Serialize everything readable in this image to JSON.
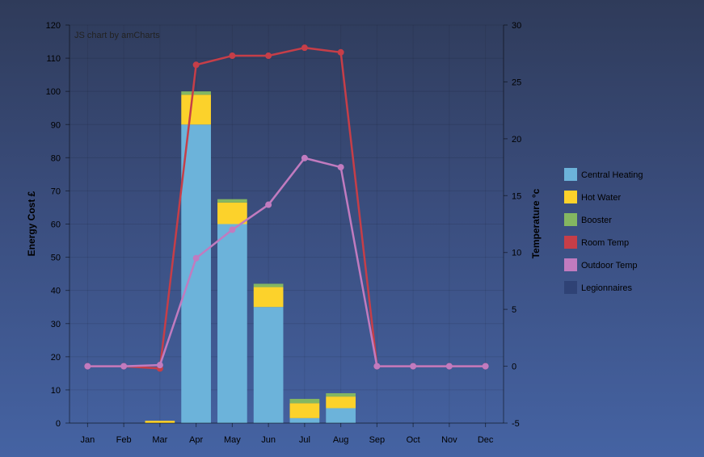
{
  "credit": "JS chart by amCharts",
  "chart_data": {
    "type": "bar",
    "categories": [
      "Jan",
      "Feb",
      "Mar",
      "Apr",
      "May",
      "Jun",
      "Jul",
      "Aug",
      "Sep",
      "Oct",
      "Nov",
      "Dec"
    ],
    "left_axis": {
      "title": "Energy Cost £",
      "min": 0,
      "max": 120,
      "step": 10
    },
    "right_axis": {
      "title": "Temperature °c",
      "min": -5,
      "max": 30,
      "step": 5
    },
    "stacked_series": [
      {
        "name": "Central Heating",
        "color": "#6cb3da",
        "values": [
          0,
          0,
          0,
          90,
          60,
          35,
          1.5,
          4.5,
          0,
          0,
          0,
          0
        ]
      },
      {
        "name": "Hot Water",
        "color": "#fcd22b",
        "values": [
          0,
          0,
          0.7,
          9,
          6.5,
          6,
          4.5,
          3.5,
          0,
          0,
          0,
          0
        ]
      },
      {
        "name": "Booster",
        "color": "#84b761",
        "values": [
          0,
          0,
          0,
          1,
          1,
          1,
          1.3,
          1,
          0,
          0,
          0,
          0
        ]
      }
    ],
    "line_series": [
      {
        "name": "Room Temp",
        "color": "#c63e48",
        "values": [
          0,
          0,
          -0.2,
          26.5,
          27.3,
          27.3,
          28,
          27.6,
          0,
          0,
          0,
          0
        ]
      },
      {
        "name": "Outdoor Temp",
        "color": "#c17bbf",
        "values": [
          0,
          0,
          0.1,
          9.5,
          12,
          14.2,
          18.3,
          17.5,
          0,
          0,
          0,
          0
        ]
      }
    ],
    "legend": {
      "position": "right",
      "items": [
        {
          "label": "Central Heating",
          "color": "#6cb3da"
        },
        {
          "label": "Hot Water",
          "color": "#fcd22b"
        },
        {
          "label": "Booster",
          "color": "#84b761"
        },
        {
          "label": "Room Temp",
          "color": "#c63e48"
        },
        {
          "label": "Outdoor Temp",
          "color": "#c17bbf"
        },
        {
          "label": "Legionnaires",
          "color": "#2f4275"
        }
      ]
    },
    "grid": true
  }
}
